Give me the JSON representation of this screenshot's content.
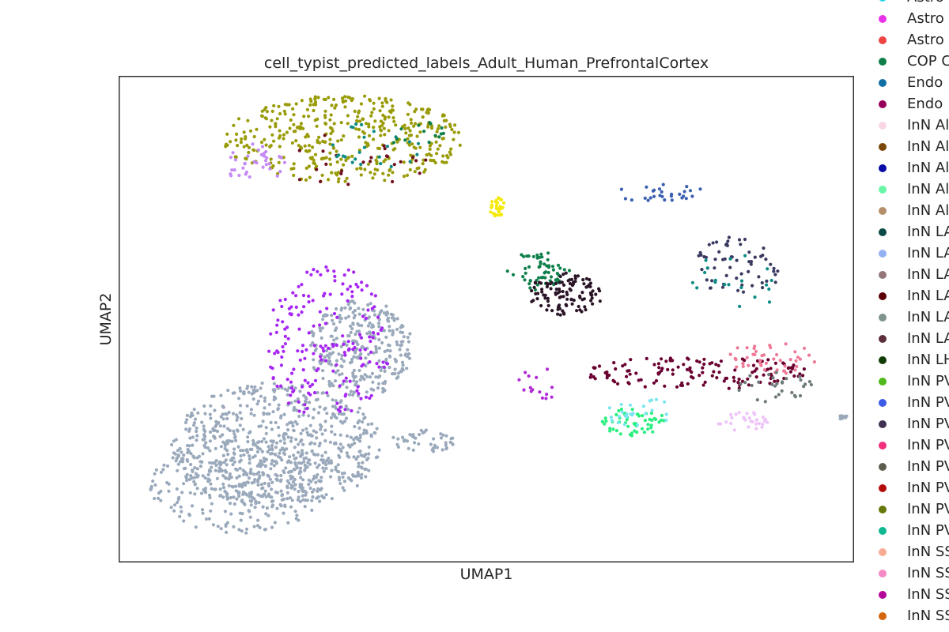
{
  "chart_data": {
    "type": "scatter",
    "title": "cell_typist_predicted_labels_Adult_Human_PrefrontalCortex",
    "xlabel": "UMAP1",
    "ylabel": "UMAP2",
    "grid": false,
    "ticks": false,
    "legend_position": "right, outside plot (clipped at image edge)",
    "legend": [
      {
        "name": "Astro",
        "color": "#22d3ee"
      },
      {
        "name": "Astro",
        "color": "#e832e8"
      },
      {
        "name": "Astro",
        "color": "#ef4444"
      },
      {
        "name": "COP C",
        "color": "#0e7f4a"
      },
      {
        "name": "Endo",
        "color": "#1070a6"
      },
      {
        "name": "Endo",
        "color": "#96005a"
      },
      {
        "name": "InN Al",
        "color": "#f9d6e6"
      },
      {
        "name": "InN Al",
        "color": "#7a4706"
      },
      {
        "name": "InN Al",
        "color": "#0a0aa6"
      },
      {
        "name": "InN Al",
        "color": "#6bf5a8"
      },
      {
        "name": "InN Al",
        "color": "#b58f6a"
      },
      {
        "name": "InN LA",
        "color": "#0b4a47"
      },
      {
        "name": "InN LA",
        "color": "#93b1f2"
      },
      {
        "name": "InN LA",
        "color": "#957779"
      },
      {
        "name": "InN LA",
        "color": "#5b0008"
      },
      {
        "name": "InN LA",
        "color": "#7f948e"
      },
      {
        "name": "InN LA",
        "color": "#5c2f3b"
      },
      {
        "name": "InN LH",
        "color": "#133d06"
      },
      {
        "name": "InN PV",
        "color": "#4fba1a"
      },
      {
        "name": "InN PV",
        "color": "#3f5ae6"
      },
      {
        "name": "InN PV",
        "color": "#3f314f"
      },
      {
        "name": "InN PV",
        "color": "#f2307d"
      },
      {
        "name": "InN PV",
        "color": "#5e5e50"
      },
      {
        "name": "InN PV",
        "color": "#b40c0c"
      },
      {
        "name": "InN PV",
        "color": "#667a0c"
      },
      {
        "name": "InN PV",
        "color": "#10b991"
      },
      {
        "name": "InN SS",
        "color": "#f7ab93"
      },
      {
        "name": "InN SS",
        "color": "#f58ac7"
      },
      {
        "name": "InN SS",
        "color": "#b5069b"
      },
      {
        "name": "InN SS",
        "color": "#d3650c"
      }
    ],
    "clusters": [
      {
        "name": "main-body",
        "color": "#9aa9bb",
        "cx": 3.0,
        "cy": 2.4,
        "rx": 2.0,
        "ry": 1.3,
        "n": 700
      },
      {
        "name": "main-neck",
        "color": "#9aa9bb",
        "cx": 4.6,
        "cy": 4.4,
        "rx": 1.0,
        "ry": 1.0,
        "n": 300
      },
      {
        "name": "main-lower",
        "color": "#9aa9bb",
        "cx": 2.3,
        "cy": 1.6,
        "rx": 1.7,
        "ry": 1.0,
        "n": 260
      },
      {
        "name": "tail",
        "color": "#9aa9bb",
        "cx": 5.8,
        "cy": 2.5,
        "rx": 0.6,
        "ry": 0.25,
        "n": 45
      },
      {
        "name": "purple-streak",
        "color": "#a626f2",
        "cx": 4.0,
        "cy": 4.5,
        "rx": 1.2,
        "ry": 1.6,
        "n": 190
      },
      {
        "name": "top-olive",
        "color": "#999b07",
        "cx": 4.3,
        "cy": 8.7,
        "rx": 2.3,
        "ry": 0.9,
        "n": 420
      },
      {
        "name": "top-lavender",
        "color": "#c58af7",
        "cx": 2.6,
        "cy": 8.2,
        "rx": 0.6,
        "ry": 0.4,
        "n": 35
      },
      {
        "name": "top-maroon",
        "color": "#6f0f1d",
        "cx": 4.5,
        "cy": 8.3,
        "rx": 1.6,
        "ry": 0.6,
        "n": 25
      },
      {
        "name": "top-teal",
        "color": "#0c8b84",
        "cx": 4.9,
        "cy": 8.6,
        "rx": 1.0,
        "ry": 0.5,
        "n": 25
      },
      {
        "name": "top-green",
        "color": "#0e7f4a",
        "cx": 5.7,
        "cy": 8.8,
        "rx": 0.6,
        "ry": 0.3,
        "n": 15
      },
      {
        "name": "yellow",
        "color": "#f5e90a",
        "cx": 7.2,
        "cy": 7.3,
        "rx": 0.15,
        "ry": 0.2,
        "n": 30
      },
      {
        "name": "green-mid",
        "color": "#0e7f4a",
        "cx": 8.0,
        "cy": 6.0,
        "rx": 0.6,
        "ry": 0.4,
        "n": 60
      },
      {
        "name": "black-mid",
        "color": "#2a1527",
        "cx": 8.5,
        "cy": 5.5,
        "rx": 0.7,
        "ry": 0.45,
        "n": 110
      },
      {
        "name": "right-upper-mix",
        "color": "#3a3a60",
        "cx": 11.8,
        "cy": 6.1,
        "rx": 0.9,
        "ry": 0.6,
        "n": 60
      },
      {
        "name": "right-upper-teal",
        "color": "#0c8b84",
        "cx": 11.8,
        "cy": 5.8,
        "rx": 0.9,
        "ry": 0.6,
        "n": 20
      },
      {
        "name": "right-upper-small",
        "color": "#3a5fb0",
        "cx": 10.3,
        "cy": 7.6,
        "rx": 0.9,
        "ry": 0.2,
        "n": 28
      },
      {
        "name": "lower-right-maroon",
        "color": "#6a0030",
        "cx": 11.0,
        "cy": 3.9,
        "rx": 2.1,
        "ry": 0.35,
        "n": 140
      },
      {
        "name": "lower-right-pink",
        "color": "#ee7a98",
        "cx": 12.5,
        "cy": 4.2,
        "rx": 0.9,
        "ry": 0.35,
        "n": 45
      },
      {
        "name": "lower-right-grey",
        "color": "#6f7a7a",
        "cx": 12.5,
        "cy": 3.6,
        "rx": 0.7,
        "ry": 0.35,
        "n": 30
      },
      {
        "name": "lower-mint",
        "color": "#2aef7f",
        "cx": 9.8,
        "cy": 2.9,
        "rx": 0.6,
        "ry": 0.3,
        "n": 55
      },
      {
        "name": "lower-cyan",
        "color": "#7ae6f0",
        "cx": 9.9,
        "cy": 3.1,
        "rx": 0.7,
        "ry": 0.3,
        "n": 25
      },
      {
        "name": "lower-purple",
        "color": "#b02ad8",
        "cx": 8.0,
        "cy": 3.7,
        "rx": 0.4,
        "ry": 0.4,
        "n": 15
      },
      {
        "name": "light-pink",
        "color": "#edc4f7",
        "cx": 11.9,
        "cy": 2.9,
        "rx": 0.5,
        "ry": 0.2,
        "n": 30
      },
      {
        "name": "far-right",
        "color": "#9aa9bb",
        "cx": 13.8,
        "cy": 3.0,
        "rx": 0.12,
        "ry": 0.06,
        "n": 10
      }
    ]
  }
}
